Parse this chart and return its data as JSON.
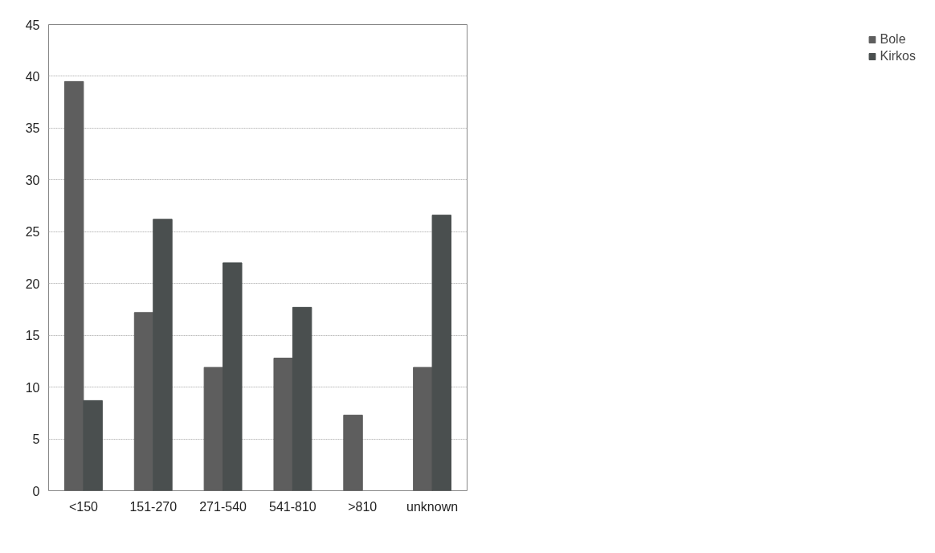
{
  "chart_data": {
    "type": "bar",
    "categories": [
      "<150",
      "151-270",
      "271-540",
      "541-810",
      ">810",
      "unknown"
    ],
    "series": [
      {
        "name": "Bole",
        "color": "#5e5e5e",
        "values": [
          39.5,
          17.2,
          11.9,
          12.8,
          7.3,
          11.9
        ]
      },
      {
        "name": "Kirkos",
        "color": "#4a4f4f",
        "values": [
          8.7,
          26.2,
          22.0,
          17.7,
          null,
          26.6
        ]
      }
    ],
    "ylim": [
      0,
      45
    ],
    "yticks": [
      0,
      5,
      10,
      15,
      20,
      25,
      30,
      35,
      40,
      45
    ],
    "grid": "y",
    "legend": "right"
  }
}
